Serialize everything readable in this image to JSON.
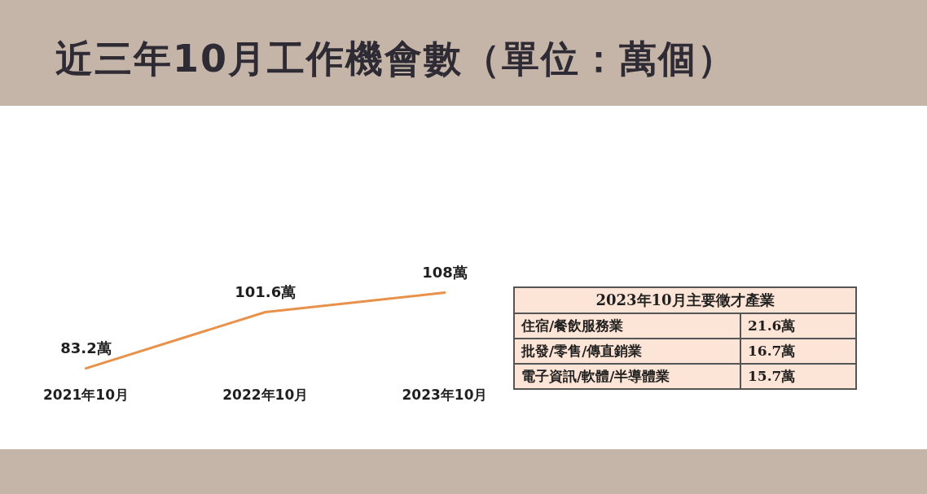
{
  "chart_data": [
    {
      "type": "line",
      "title": "近三年10月工作機會數（單位：萬個）",
      "categories": [
        "2021年10月",
        "2022年10月",
        "2023年10月"
      ],
      "values": [
        83.2,
        101.6,
        108
      ],
      "value_labels": [
        "83.2萬",
        "101.6萬",
        "108萬"
      ],
      "color": "#e8914a",
      "tick_labels": "x"
    },
    {
      "type": "other",
      "title": "2023年10月主要徵才產業",
      "categories": [
        "住宿/餐飲服務業",
        "批發/零售/傳直銷業",
        "電子資訊/軟體/半導體業"
      ],
      "values": [
        21.6,
        16.7,
        15.7
      ],
      "value_labels": [
        "21.6萬",
        "16.7萬",
        "15.7萬"
      ]
    }
  ]
}
